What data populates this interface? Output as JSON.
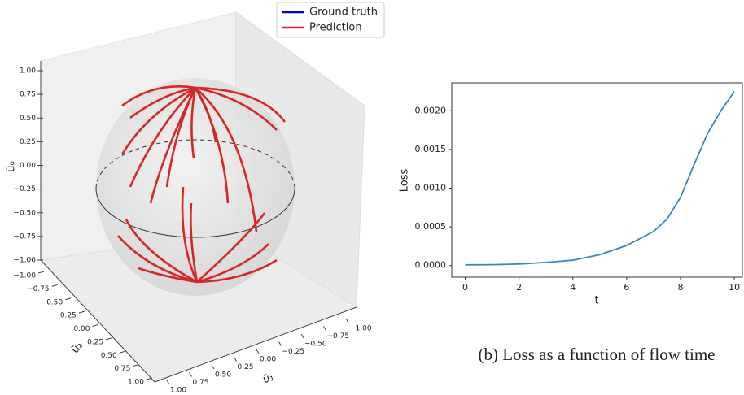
{
  "chart_data": [
    {
      "type": "sphere-3d",
      "series": [
        {
          "name": "Ground truth",
          "color": "#0000cc"
        },
        {
          "name": "Prediction",
          "color": "#dd2020"
        }
      ],
      "xlabel": "ũ₁",
      "ylabel": "ũ₂",
      "zlabel": "ũ₀",
      "xlim": [
        -1,
        1
      ],
      "ylim": [
        -1,
        1
      ],
      "zlim": [
        -1,
        1
      ],
      "xticks": [
        {
          "value": -1,
          "label": "−1.00"
        },
        {
          "value": -0.75,
          "label": "−0.75"
        },
        {
          "value": -0.5,
          "label": "−0.50"
        },
        {
          "value": -0.25,
          "label": "−0.25"
        },
        {
          "value": 0,
          "label": "0.00"
        },
        {
          "value": 0.25,
          "label": "0.25"
        },
        {
          "value": 0.5,
          "label": "0.50"
        },
        {
          "value": 0.75,
          "label": "0.75"
        },
        {
          "value": 1,
          "label": "1.00"
        }
      ],
      "yticks": [
        {
          "value": -1,
          "label": "−1.00"
        },
        {
          "value": -0.75,
          "label": "−0.75"
        },
        {
          "value": -0.5,
          "label": "−0.50"
        },
        {
          "value": -0.25,
          "label": "−0.25"
        },
        {
          "value": 0,
          "label": "0.00"
        },
        {
          "value": 0.25,
          "label": "0.25"
        },
        {
          "value": 0.5,
          "label": "0.50"
        },
        {
          "value": 0.75,
          "label": "0.75"
        },
        {
          "value": 1,
          "label": "1.00"
        }
      ],
      "zticks": [
        {
          "value": -1,
          "label": "−1.00"
        },
        {
          "value": -0.75,
          "label": "−0.75"
        },
        {
          "value": -0.5,
          "label": "−0.50"
        },
        {
          "value": -0.25,
          "label": "−0.25"
        },
        {
          "value": 0,
          "label": "0.00"
        },
        {
          "value": 0.25,
          "label": "0.25"
        },
        {
          "value": 0.5,
          "label": "0.50"
        },
        {
          "value": 0.75,
          "label": "0.75"
        },
        {
          "value": 1,
          "label": "1.00"
        }
      ]
    },
    {
      "type": "line",
      "caption": "(b) Loss as a function of flow time",
      "xlabel": "t",
      "ylabel": "Loss",
      "color": "#3b84c0",
      "x": [
        0,
        1,
        2,
        3,
        4,
        5,
        6,
        7,
        7.5,
        8,
        8.5,
        9,
        9.5,
        10
      ],
      "values": [
        1e-05,
        1.2e-05,
        2e-05,
        4e-05,
        7e-05,
        0.00014,
        0.00026,
        0.00044,
        0.0006,
        0.00088,
        0.0013,
        0.0017,
        0.002,
        0.00225
      ],
      "xlim": [
        -0.5,
        10.3
      ],
      "ylim": [
        -0.00015,
        0.00236
      ],
      "xticks": [
        0,
        2,
        4,
        6,
        8,
        10
      ],
      "yticks": [
        {
          "value": 0,
          "label": "0.0000"
        },
        {
          "value": 0.0005,
          "label": "0.0005"
        },
        {
          "value": 0.001,
          "label": "0.0010"
        },
        {
          "value": 0.0015,
          "label": "0.0015"
        },
        {
          "value": 0.002,
          "label": "0.0020"
        }
      ]
    }
  ]
}
